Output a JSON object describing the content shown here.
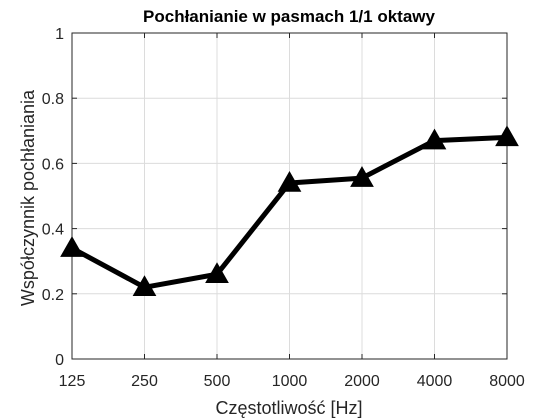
{
  "chart_data": {
    "type": "line",
    "title": "Pochłanianie w pasmach 1/1 oktawy",
    "xlabel": "Częstotliwość [Hz]",
    "ylabel": "Współczynnik pochłaniania",
    "x": [
      "125",
      "250",
      "500",
      "1000",
      "2000",
      "4000",
      "8000"
    ],
    "series": [
      {
        "values": [
          0.34,
          0.22,
          0.26,
          0.54,
          0.555,
          0.67,
          0.68
        ]
      }
    ],
    "ylim": [
      0,
      1
    ],
    "yticks": [
      "0",
      "0.2",
      "0.4",
      "0.6",
      "0.8",
      "1"
    ],
    "grid": true,
    "marker": "triangle",
    "line_color": "#000000",
    "grid_color": "#dcdcdc",
    "axis_color": "#262626"
  }
}
